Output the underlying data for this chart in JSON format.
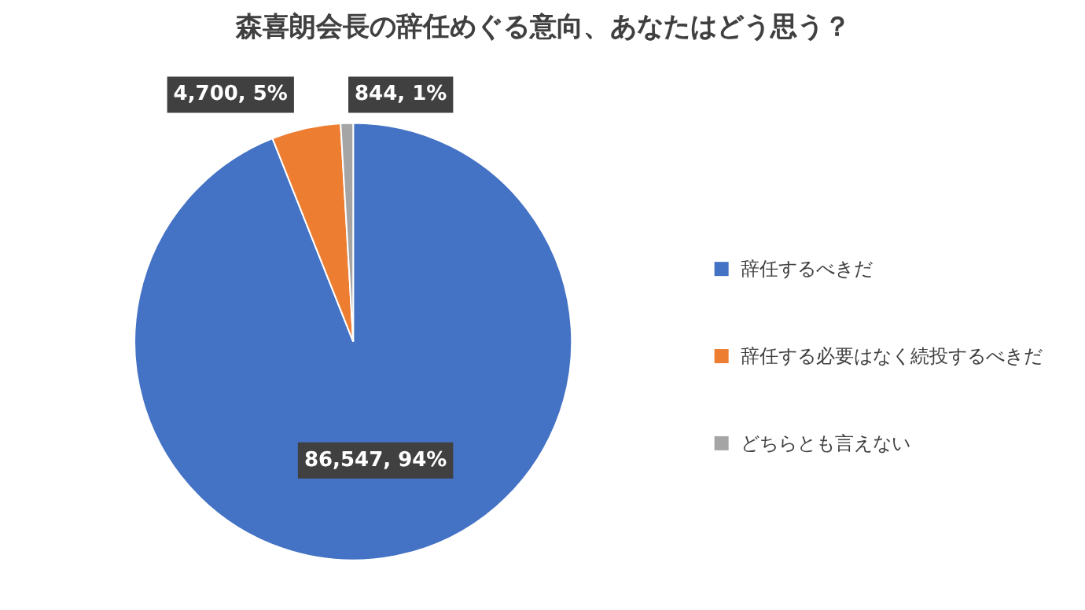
{
  "chart_data": {
    "type": "pie",
    "title": "森喜朗会長の辞任めぐる意向、あなたはどう思う？",
    "categories": [
      "辞任するべきだ",
      "辞任する必要はなく続投するべきだ",
      "どちらとも言えない"
    ],
    "values": [
      86547,
      4700,
      844
    ],
    "colors": [
      "#4472c4",
      "#ed7d31",
      "#a5a5a5"
    ],
    "value_labels": [
      "86,547, 94%",
      "4,700, 5%",
      "844, 1%"
    ],
    "legend": "right"
  }
}
